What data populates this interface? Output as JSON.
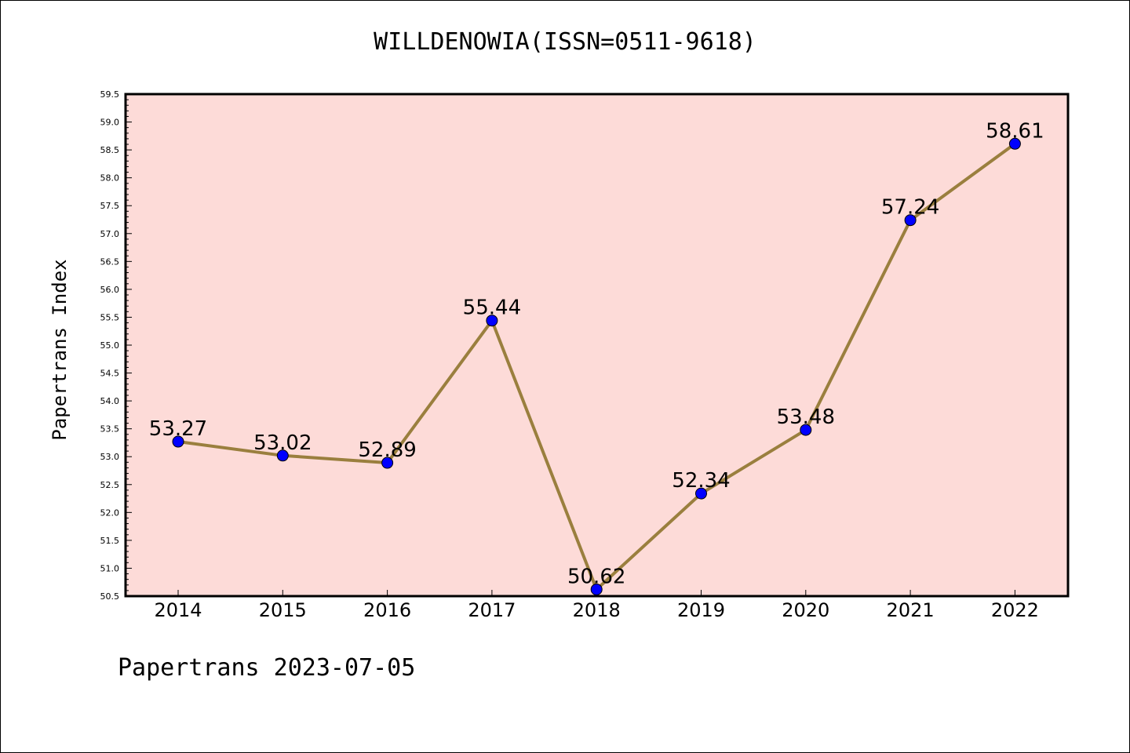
{
  "chart_data": {
    "type": "line",
    "title": "WILLDENOWIA(ISSN=0511-9618)",
    "xlabel": "",
    "ylabel": "Papertrans Index",
    "categories": [
      "2014",
      "2015",
      "2016",
      "2017",
      "2018",
      "2019",
      "2020",
      "2021",
      "2022"
    ],
    "series": [
      {
        "values": [
          53.27,
          53.02,
          52.89,
          55.44,
          50.62,
          52.34,
          53.48,
          57.24,
          58.61
        ],
        "data_labels": [
          "53.27",
          "53.02",
          "52.89",
          "55.44",
          "50.62",
          "52.34",
          "53.48",
          "57.24",
          "58.61"
        ]
      }
    ],
    "ylim": [
      50.5,
      59.5
    ],
    "yticks": [
      "50.5",
      "51.0",
      "51.5",
      "52.0",
      "52.5",
      "53.0",
      "53.5",
      "54.0",
      "54.5",
      "55.0",
      "55.5",
      "56.0",
      "56.5",
      "57.0",
      "57.5",
      "58.0",
      "58.5",
      "59.0",
      "59.5"
    ],
    "grid": false,
    "colors": {
      "plot_background": "#fddbd8",
      "line": "#9a7f3e",
      "marker": "#0000ff"
    }
  },
  "footer": {
    "text": "Papertrans 2023-07-05"
  }
}
